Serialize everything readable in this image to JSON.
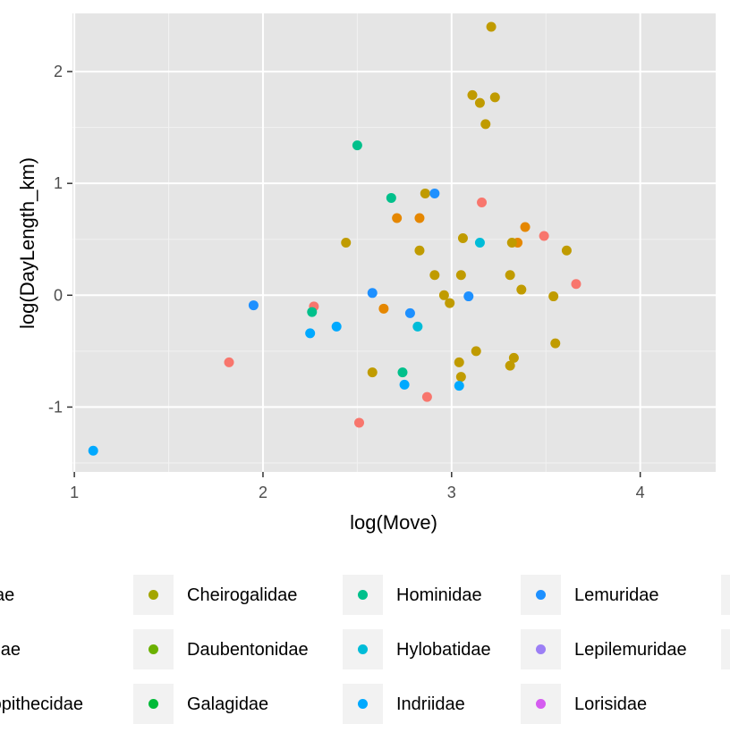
{
  "chart_data": {
    "type": "scatter",
    "xlabel": "log(Move)",
    "ylabel": "log(DayLength_km)",
    "xlim": [
      0.99,
      4.4
    ],
    "ylim": [
      -1.58,
      2.52
    ],
    "x_ticks": [
      1,
      2,
      3,
      4
    ],
    "y_ticks": [
      -1,
      0,
      1,
      2
    ],
    "grid": true,
    "panel_background": "#e5e5e5",
    "grid_color": "#ffffff",
    "legend_position": "bottom",
    "colors": {
      "Atelidae": "#F8766D",
      "Cebidae": "#E58700",
      "Cercopithecidae": "#C09B00",
      "Cheirogalidae": "#A3A500",
      "Daubentonidae": "#6BB100",
      "Galagidae": "#00BA38",
      "Hominidae": "#00C08B",
      "Hylobatidae": "#00BCD8",
      "Indriidae": "#00A9FF",
      "Lemuridae": "#1E90FF",
      "Lepilemuridae": "#9C7FF5",
      "Lorisidae": "#D55CF0"
    },
    "legend": {
      "columns": [
        [
          "lidae",
          "bidae",
          "rcopithecidae"
        ],
        [
          "Cheirogalidae",
          "Daubentonidae",
          "Galagidae"
        ],
        [
          "Hominidae",
          "Hylobatidae",
          "Indriidae"
        ],
        [
          "Lemuridae",
          "Lepilemuridae",
          "Lorisidae"
        ]
      ],
      "keys": [
        [
          "Atelidae",
          "Cebidae",
          "Cercopithecidae"
        ],
        [
          "Cheirogalidae",
          "Daubentonidae",
          "Galagidae"
        ],
        [
          "Hominidae",
          "Hylobatidae",
          "Indriidae"
        ],
        [
          "Lemuridae",
          "Lepilemuridae",
          "Lorisidae"
        ]
      ]
    },
    "series": [
      {
        "key": "Atelidae",
        "points": [
          [
            1.82,
            -0.6
          ],
          [
            2.27,
            -0.1
          ],
          [
            2.51,
            -1.14
          ],
          [
            2.87,
            -0.91
          ],
          [
            3.16,
            0.83
          ],
          [
            3.49,
            0.53
          ],
          [
            3.66,
            0.1
          ]
        ]
      },
      {
        "key": "Cebidae",
        "points": [
          [
            2.64,
            -0.12
          ],
          [
            2.71,
            0.69
          ],
          [
            2.83,
            0.69
          ],
          [
            3.35,
            0.47
          ],
          [
            3.39,
            0.61
          ]
        ]
      },
      {
        "key": "Cercopithecidae",
        "points": [
          [
            2.44,
            0.47
          ],
          [
            2.58,
            -0.69
          ],
          [
            2.83,
            0.4
          ],
          [
            2.86,
            0.91
          ],
          [
            2.91,
            0.18
          ],
          [
            2.96,
            0.0
          ],
          [
            2.99,
            -0.07
          ],
          [
            3.04,
            -0.6
          ],
          [
            3.05,
            -0.73
          ],
          [
            3.05,
            0.18
          ],
          [
            3.06,
            0.51
          ],
          [
            3.11,
            1.79
          ],
          [
            3.13,
            -0.5
          ],
          [
            3.15,
            1.72
          ],
          [
            3.18,
            1.53
          ],
          [
            3.21,
            2.4
          ],
          [
            3.23,
            1.77
          ],
          [
            3.31,
            0.18
          ],
          [
            3.31,
            -0.63
          ],
          [
            3.32,
            0.47
          ],
          [
            3.33,
            -0.56
          ],
          [
            3.37,
            0.05
          ],
          [
            3.54,
            -0.01
          ],
          [
            3.55,
            -0.43
          ],
          [
            3.61,
            0.4
          ]
        ]
      },
      {
        "key": "Hominidae",
        "points": [
          [
            2.26,
            -0.15
          ],
          [
            2.5,
            1.34
          ],
          [
            2.68,
            0.87
          ],
          [
            2.74,
            -0.69
          ]
        ]
      },
      {
        "key": "Hylobatidae",
        "points": [
          [
            2.82,
            -0.28
          ],
          [
            3.15,
            0.47
          ]
        ]
      },
      {
        "key": "Indriidae",
        "points": [
          [
            1.1,
            -1.39
          ],
          [
            2.25,
            -0.34
          ],
          [
            2.39,
            -0.28
          ],
          [
            2.75,
            -0.8
          ],
          [
            3.04,
            -0.81
          ]
        ]
      },
      {
        "key": "Lemuridae",
        "points": [
          [
            1.95,
            -0.09
          ],
          [
            2.58,
            0.02
          ],
          [
            2.78,
            -0.16
          ],
          [
            2.91,
            0.91
          ],
          [
            3.09,
            -0.01
          ]
        ]
      }
    ]
  }
}
